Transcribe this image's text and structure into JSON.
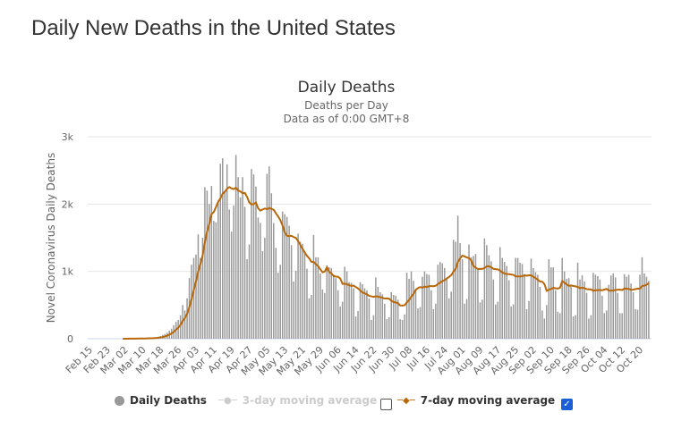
{
  "page_title": "Daily New Deaths in the United States",
  "chart_data": {
    "type": "bar",
    "title": "Daily Deaths",
    "subtitle": "Deaths per Day",
    "subtitle2": "Data as of 0:00 GMT+8",
    "ylabel": "Novel Coronavirus Daily Deaths",
    "ylim": [
      0,
      3000
    ],
    "yticks": [
      "0",
      "1k",
      "2k",
      "3k"
    ],
    "start_date": "Feb 15",
    "xticks": [
      "Feb 15",
      "Feb 23",
      "Mar 02",
      "Mar 10",
      "Mar 18",
      "Mar 26",
      "Apr 03",
      "Apr 11",
      "Apr 19",
      "Apr 27",
      "May 05",
      "May 13",
      "May 21",
      "May 29",
      "Jun 06",
      "Jun 14",
      "Jun 22",
      "Jun 30",
      "Jul 08",
      "Jul 16",
      "Jul 24",
      "Aug 01",
      "Aug 09",
      "Aug 17",
      "Aug 25",
      "Sep 02",
      "Sep 10",
      "Sep 18",
      "Sep 26",
      "Oct 04",
      "Oct 12",
      "Oct 20"
    ],
    "values": [
      0,
      0,
      0,
      0,
      0,
      0,
      0,
      0,
      0,
      0,
      0,
      0,
      0,
      0,
      0,
      1,
      1,
      2,
      5,
      2,
      1,
      4,
      3,
      4,
      8,
      6,
      10,
      8,
      10,
      15,
      20,
      30,
      40,
      55,
      70,
      90,
      120,
      150,
      200,
      250,
      280,
      350,
      500,
      420,
      600,
      900,
      1100,
      1200,
      1250,
      1550,
      1200,
      1500,
      2250,
      2200,
      2000,
      2270,
      1750,
      1730,
      2050,
      2600,
      2680,
      2200,
      2590,
      1920,
      1590,
      1980,
      2730,
      2400,
      2100,
      2400,
      1960,
      1180,
      1400,
      2520,
      2440,
      2260,
      1800,
      1720,
      1300,
      1500,
      2450,
      2560,
      2160,
      1720,
      1350,
      980,
      1100,
      1890,
      1850,
      1810,
      1680,
      1390,
      850,
      1010,
      1560,
      1440,
      1410,
      1300,
      1040,
      600,
      650,
      1540,
      1210,
      1210,
      970,
      730,
      680,
      1090,
      1060,
      1050,
      950,
      900,
      720,
      480,
      550,
      1070,
      1000,
      840,
      830,
      750,
      330,
      410,
      840,
      810,
      750,
      720,
      600,
      280,
      350,
      910,
      770,
      690,
      660,
      520,
      290,
      320,
      690,
      650,
      640,
      580,
      290,
      280,
      360,
      980,
      890,
      1000,
      860,
      720,
      450,
      470,
      920,
      1000,
      960,
      950,
      720,
      440,
      520,
      1100,
      1140,
      1120,
      1050,
      900,
      600,
      700,
      1470,
      1440,
      1830,
      1420,
      1180,
      520,
      590,
      1400,
      1210,
      1230,
      1260,
      1040,
      540,
      580,
      1490,
      1390,
      1240,
      1150,
      880,
      510,
      550,
      1360,
      1200,
      1140,
      1080,
      870,
      480,
      510,
      1200,
      1200,
      1130,
      1110,
      960,
      440,
      560,
      1190,
      1050,
      990,
      950,
      770,
      420,
      300,
      500,
      1180,
      1060,
      1060,
      720,
      400,
      380,
      1200,
      1000,
      890,
      900,
      780,
      330,
      350,
      1130,
      880,
      940,
      850,
      680,
      300,
      350,
      980,
      950,
      930,
      880,
      640,
      380,
      420,
      800,
      940,
      970,
      910,
      680,
      380,
      380,
      960,
      920,
      950,
      820,
      690,
      440,
      430,
      950,
      1210,
      970,
      920,
      860
    ],
    "series": [
      {
        "name": "Daily Deaths",
        "color": "#999999",
        "enabled": true
      },
      {
        "name": "3-day moving average",
        "color": "#cccccc",
        "enabled": false
      },
      {
        "name": "7-day moving average",
        "color": "#b8680a",
        "enabled": true
      }
    ],
    "legend": "bottom"
  }
}
